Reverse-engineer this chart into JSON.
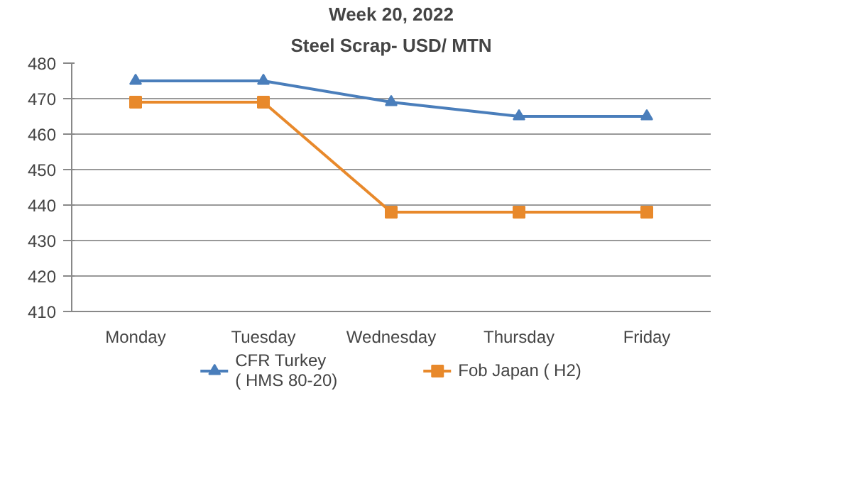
{
  "chart_data": {
    "type": "line",
    "title": "Week 20, 2022",
    "subtitle": "Steel Scrap- USD/ MTN",
    "categories": [
      "Monday",
      "Tuesday",
      "Wednesday",
      "Thursday",
      "Friday"
    ],
    "series": [
      {
        "name": "CFR Turkey\n( HMS 80-20)",
        "color": "#4a7ebb",
        "marker": "triangle",
        "values": [
          475,
          475,
          469,
          465,
          465
        ]
      },
      {
        "name": "Fob Japan ( H2)",
        "color": "#e8892b",
        "marker": "square",
        "values": [
          469,
          469,
          438,
          438,
          438
        ]
      }
    ],
    "ylim": [
      410,
      480
    ],
    "yticks": [
      410,
      420,
      430,
      440,
      450,
      460,
      470,
      480
    ],
    "grid": "y",
    "legend": "bottom"
  }
}
